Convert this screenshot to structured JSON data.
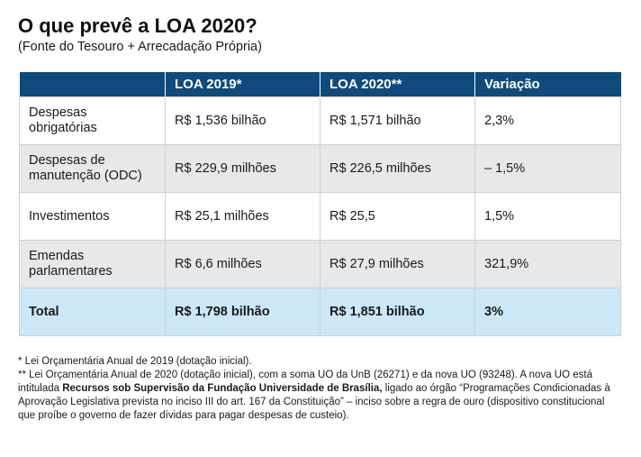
{
  "title": "O que prevê a LOA 2020?",
  "subtitle": "(Fonte do Tesouro + Arrecadação Própria)",
  "table": {
    "headers": [
      "",
      "LOA 2019*",
      "LOA 2020**",
      "Variação"
    ],
    "rows": [
      {
        "label": "Despesas obrigatórias",
        "loa2019": "R$ 1,536 bilhão",
        "loa2020": "R$ 1,571 bilhão",
        "variacao": "2,3%"
      },
      {
        "label": "Despesas de manutenção (ODC)",
        "loa2019": "R$ 229,9 milhões",
        "loa2020": "R$ 226,5 milhões",
        "variacao": "– 1,5%"
      },
      {
        "label": "Investimentos",
        "loa2019": "R$ 25,1 milhões",
        "loa2020": "R$ 25,5",
        "variacao": "1,5%"
      },
      {
        "label": "Emendas parlamentares",
        "loa2019": "R$ 6,6 milhões",
        "loa2020": "R$ 27,9 milhões",
        "variacao": "321,9%"
      }
    ],
    "total": {
      "label": "Total",
      "loa2019": "R$ 1,798 bilhão",
      "loa2020": "R$ 1,851 bilhão",
      "variacao": "3%"
    }
  },
  "notes": {
    "note1": "* Lei Orçamentária Anual de 2019 (dotação inicial).",
    "note2_start": "** Lei Orçamentária Anual de 2020 (dotação inicial), com a soma UO da UnB (26271) e da nova UO (93248). A nova UO está intitulada ",
    "note2_bold": "Recursos sob Supervisão da Fundação Universidade de Brasília,",
    "note2_end": " ligado ao órgão “Programações Condicionadas à Aprovação Legislativa prevista no inciso III do art. 167 da Constituição” – inciso sobre a regra de ouro (dispositivo constitucional que proíbe o governo de fazer dívidas para pagar despesas de custeio)."
  },
  "colors": {
    "header_bg": "#0e4a7c",
    "row_alt_bg": "#e8e8e8",
    "total_bg": "#cce8f8"
  }
}
